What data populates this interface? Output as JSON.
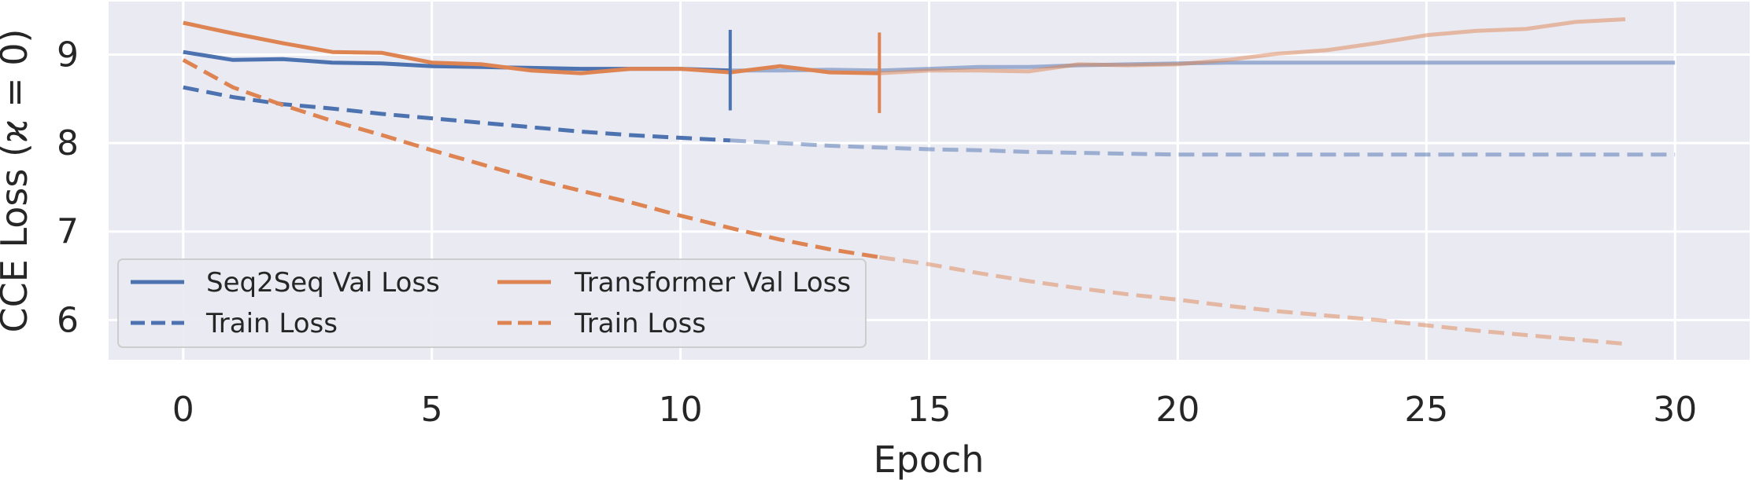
{
  "chart_data": {
    "type": "line",
    "title": "",
    "xlabel": "Epoch",
    "ylabel": "CCE Loss (ϰ = 0)",
    "xlim": [
      -1.5,
      31.5
    ],
    "ylim": [
      5.55,
      9.6
    ],
    "xticks": [
      0,
      5,
      10,
      15,
      20,
      25,
      30
    ],
    "yticks": [
      6,
      7,
      8,
      9
    ],
    "grid": true,
    "legend_position": "bottom-left",
    "colors": {
      "seq2seq": "#4c72b0",
      "transformer": "#dd8452",
      "background": "#eaeaf2",
      "grid": "#ffffff"
    },
    "series": [
      {
        "name": "Seq2Seq Val Loss",
        "model": "seq2seq",
        "style": "solid",
        "highlight_until": 11,
        "x": [
          0,
          1,
          2,
          3,
          4,
          5,
          6,
          7,
          8,
          9,
          10,
          11,
          12,
          13,
          14,
          15,
          16,
          17,
          18,
          19,
          20,
          21,
          22,
          23,
          24,
          25,
          26,
          27,
          28,
          29,
          30
        ],
        "y": [
          9.03,
          8.94,
          8.95,
          8.91,
          8.9,
          8.87,
          8.86,
          8.85,
          8.84,
          8.84,
          8.84,
          8.82,
          8.82,
          8.83,
          8.82,
          8.84,
          8.86,
          8.86,
          8.88,
          8.89,
          8.9,
          8.91,
          8.91,
          8.91,
          8.91,
          8.91,
          8.91,
          8.91,
          8.91,
          8.91,
          8.91
        ]
      },
      {
        "name": "Train Loss",
        "model": "seq2seq",
        "style": "dashed",
        "highlight_until": 11,
        "x": [
          0,
          1,
          2,
          3,
          4,
          5,
          6,
          7,
          8,
          9,
          10,
          11,
          12,
          13,
          14,
          15,
          16,
          17,
          18,
          19,
          20,
          21,
          22,
          23,
          24,
          25,
          26,
          27,
          28,
          29,
          30
        ],
        "y": [
          8.63,
          8.52,
          8.44,
          8.39,
          8.33,
          8.28,
          8.23,
          8.18,
          8.13,
          8.09,
          8.06,
          8.03,
          8.0,
          7.97,
          7.95,
          7.93,
          7.92,
          7.9,
          7.89,
          7.88,
          7.87,
          7.87,
          7.87,
          7.87,
          7.87,
          7.87,
          7.87,
          7.87,
          7.87,
          7.87,
          7.87
        ]
      },
      {
        "name": "Transformer Val Loss",
        "model": "transformer",
        "style": "solid",
        "highlight_until": 14,
        "x": [
          0,
          1,
          2,
          3,
          4,
          5,
          6,
          7,
          8,
          9,
          10,
          11,
          12,
          13,
          14,
          15,
          16,
          17,
          18,
          19,
          20,
          21,
          22,
          23,
          24,
          25,
          26,
          27,
          28,
          29
        ],
        "y": [
          9.36,
          9.24,
          9.13,
          9.03,
          9.02,
          8.91,
          8.89,
          8.82,
          8.79,
          8.84,
          8.84,
          8.8,
          8.87,
          8.8,
          8.79,
          8.82,
          8.82,
          8.81,
          8.89,
          8.88,
          8.89,
          8.94,
          9.01,
          9.05,
          9.13,
          9.22,
          9.27,
          9.29,
          9.37,
          9.4
        ]
      },
      {
        "name": "Train Loss",
        "model": "transformer",
        "style": "dashed",
        "highlight_until": 14,
        "x": [
          0,
          1,
          2,
          3,
          4,
          5,
          6,
          7,
          8,
          9,
          10,
          11,
          12,
          13,
          14,
          15,
          16,
          17,
          18,
          19,
          20,
          21,
          22,
          23,
          24,
          25,
          26,
          27,
          28,
          29
        ],
        "y": [
          8.94,
          8.63,
          8.43,
          8.25,
          8.09,
          7.92,
          7.76,
          7.6,
          7.46,
          7.33,
          7.18,
          7.04,
          6.91,
          6.8,
          6.71,
          6.63,
          6.53,
          6.44,
          6.36,
          6.29,
          6.23,
          6.16,
          6.1,
          6.05,
          6.0,
          5.94,
          5.88,
          5.83,
          5.78,
          5.73
        ]
      }
    ],
    "markers": [
      {
        "model": "seq2seq",
        "x": 11,
        "y_range": [
          8.37,
          9.28
        ]
      },
      {
        "model": "transformer",
        "x": 14,
        "y_range": [
          8.34,
          9.25
        ]
      }
    ]
  }
}
